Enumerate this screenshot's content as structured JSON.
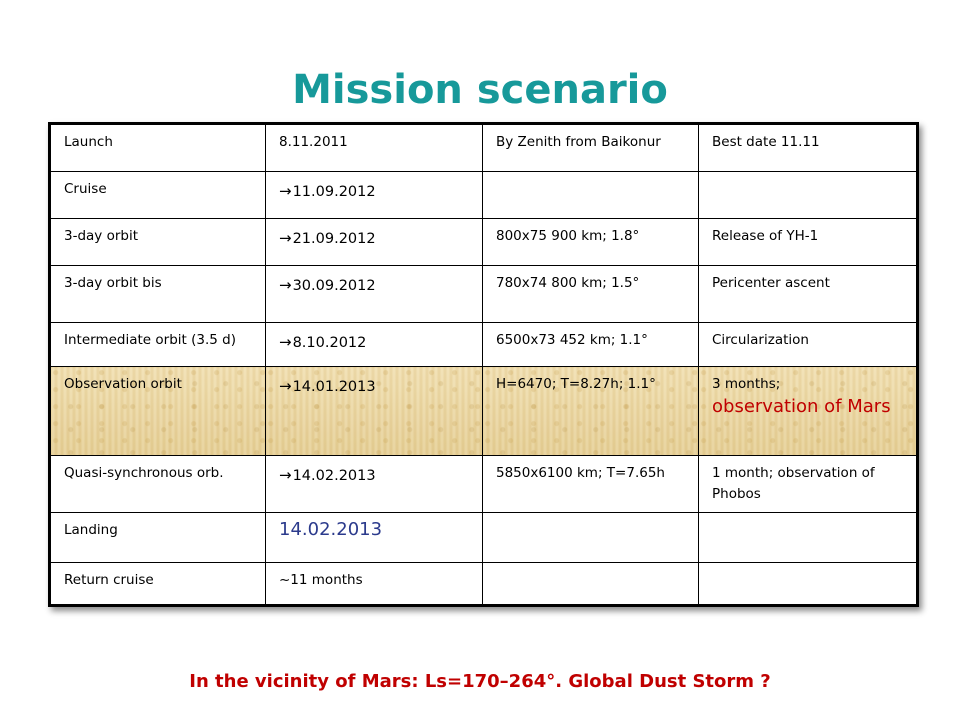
{
  "title": "Mission scenario",
  "arrow_glyph": "→",
  "rows": [
    {
      "phase": "Launch",
      "date": "8.11.2011",
      "date_arrow": false,
      "orbit": "By Zenith from Baikonur",
      "notes": "Best date 11.11"
    },
    {
      "phase": "Cruise",
      "date": "11.09.2012",
      "date_arrow": true,
      "orbit": "",
      "notes": ""
    },
    {
      "phase": "3-day orbit",
      "date": "21.09.2012",
      "date_arrow": true,
      "orbit": "800x75 900 km; 1.8°",
      "notes": "Release of YH-1"
    },
    {
      "phase": "3-day orbit bis",
      "date": "30.09.2012",
      "date_arrow": true,
      "orbit": "780x74 800 km; 1.5°",
      "notes": "Pericenter ascent"
    },
    {
      "phase": "Intermediate orbit (3.5 d)",
      "date": "8.10.2012",
      "date_arrow": true,
      "orbit": "6500x73 452 km; 1.1°",
      "notes": "Circularization"
    },
    {
      "phase": "Observation orbit",
      "date": "14.01.2013",
      "date_arrow": true,
      "orbit": "H=6470; T=8.27h; 1.1°",
      "notes": "3 months;",
      "notes_highlight": "observation of Mars"
    },
    {
      "phase": "Quasi-synchronous orb.",
      "date": "14.02.2013",
      "date_arrow": true,
      "orbit": "5850x6100 km; T=7.65h",
      "notes": "1 month; observation of Phobos"
    },
    {
      "phase": "Landing",
      "date": "14.02.2013",
      "date_arrow": false,
      "orbit": "",
      "notes": ""
    },
    {
      "phase": "Return cruise",
      "date": "~11 months",
      "date_arrow": false,
      "orbit": "",
      "notes": ""
    }
  ],
  "footer": "In the vicinity of Mars: Ls=170–264°. Global Dust Storm ?",
  "colors": {
    "title": "#17999a",
    "footer": "#c00000",
    "highlight_text": "#c00000",
    "landing_date": "#2b3a8c",
    "highlight_row_bg": "#ecd9a6"
  }
}
